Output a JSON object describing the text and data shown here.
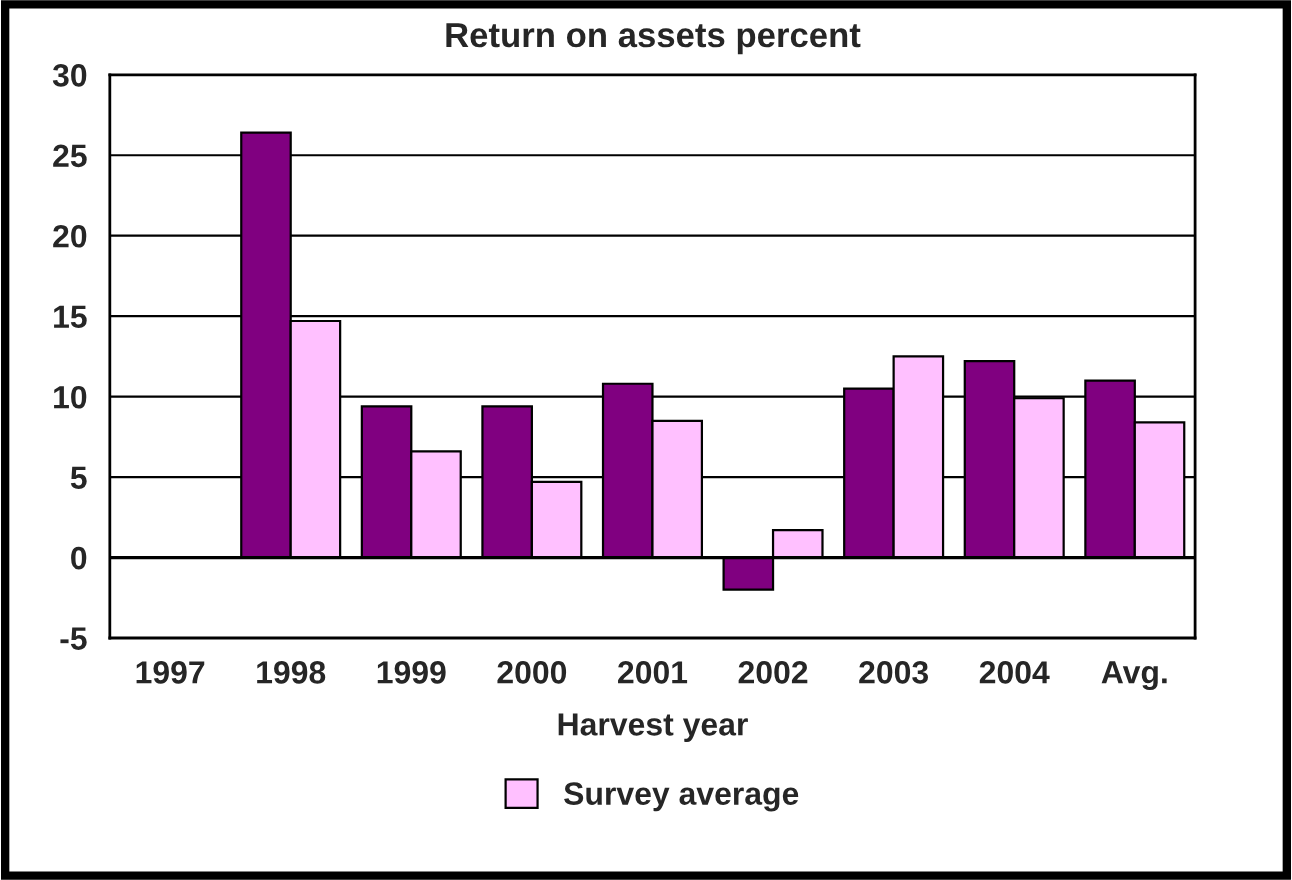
{
  "chart_data": {
    "type": "bar",
    "title": "Return on assets percent",
    "xlabel": "Harvest year",
    "categories": [
      "1997",
      "1998",
      "1999",
      "2000",
      "2001",
      "2002",
      "2003",
      "2004",
      "Avg."
    ],
    "series": [
      {
        "color": "#800080",
        "values": [
          null,
          26.4,
          9.4,
          9.4,
          10.8,
          -2.0,
          10.5,
          12.2,
          11.0
        ]
      },
      {
        "name": "Survey average",
        "color": "#ffc0ff",
        "values": [
          null,
          14.7,
          6.6,
          4.7,
          8.5,
          1.7,
          12.5,
          9.9,
          8.4
        ]
      }
    ],
    "ylim": [
      -5,
      30
    ],
    "yticks": [
      -5,
      0,
      5,
      10,
      15,
      20,
      25,
      30
    ],
    "grid": "y",
    "legend": "bottom"
  }
}
